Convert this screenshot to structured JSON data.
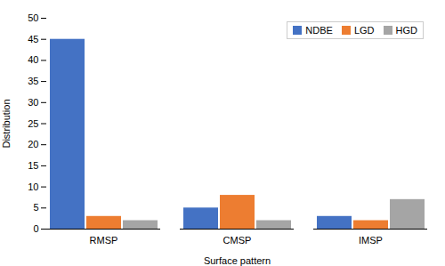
{
  "chart_data": {
    "type": "bar",
    "categories": [
      "RMSP",
      "CMSP",
      "IMSP"
    ],
    "series": [
      {
        "name": "NDBE",
        "color": "#4472C4",
        "values": [
          45,
          5,
          3
        ]
      },
      {
        "name": "LGD",
        "color": "#ED7D31",
        "values": [
          3,
          8,
          2
        ]
      },
      {
        "name": "HGD",
        "color": "#A5A5A5",
        "values": [
          2,
          2,
          7
        ]
      }
    ],
    "xlabel": "Surface pattern",
    "ylabel": "Distribution",
    "ylim": [
      0,
      50
    ],
    "yticks": [
      0,
      5,
      10,
      15,
      20,
      25,
      30,
      35,
      40,
      45,
      50
    ],
    "grid": false,
    "legend": "upper right"
  }
}
